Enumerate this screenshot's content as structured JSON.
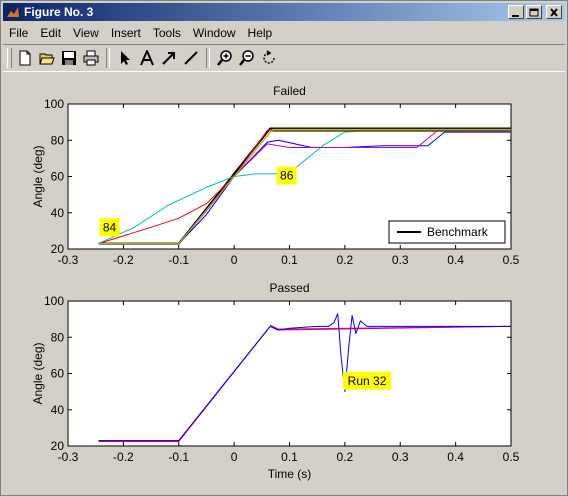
{
  "window": {
    "title": "Figure No. 3"
  },
  "menu": [
    "File",
    "Edit",
    "View",
    "Insert",
    "Tools",
    "Window",
    "Help"
  ],
  "toolbar": [
    "new-file-icon",
    "open-folder-icon",
    "save-icon",
    "print-icon",
    "select-arrow-icon",
    "text-insert-icon",
    "arrow-insert-icon",
    "line-insert-icon",
    "zoom-in-icon",
    "zoom-out-icon",
    "rotate-icon"
  ],
  "chart_data": [
    {
      "type": "line",
      "title": "Failed",
      "ylabel": "Angle (deg)",
      "xlabel": "",
      "xlim": [
        -0.3,
        0.5
      ],
      "ylim": [
        20,
        100
      ],
      "xticks": [
        "-0.3",
        "-0.2",
        "-0.1",
        "0",
        "0.1",
        "0.2",
        "0.3",
        "0.4",
        "0.5"
      ],
      "yticks": [
        "20",
        "40",
        "60",
        "80",
        "100"
      ],
      "legend": {
        "position": "bottom-right",
        "entries": [
          "Benchmark"
        ]
      },
      "annotations": [
        {
          "text": "84",
          "x": -0.225,
          "y": 32
        },
        {
          "text": "86",
          "x": 0.095,
          "y": 60.5
        }
      ],
      "series": [
        {
          "name": "Benchmark",
          "color": "#000000",
          "x": [
            -0.245,
            -0.1,
            0.065,
            0.5
          ],
          "y": [
            23,
            23,
            86.5,
            86.5
          ]
        },
        {
          "color": "#00bfbf",
          "x": [
            -0.245,
            -0.18,
            -0.12,
            -0.05,
            0,
            0.04,
            0.08,
            0.1,
            0.16,
            0.2,
            0.25,
            0.5
          ],
          "y": [
            23,
            32,
            44,
            54,
            60,
            61.5,
            61.5,
            62,
            77,
            84.5,
            85.5,
            85.5
          ]
        },
        {
          "color": "#ff0000",
          "x": [
            -0.245,
            -0.15,
            -0.1,
            -0.05,
            0,
            0.06,
            0.5
          ],
          "y": [
            23,
            32,
            37,
            45,
            60,
            85.5,
            85.5
          ]
        },
        {
          "color": "#0000ff",
          "x": [
            -0.245,
            -0.1,
            -0.05,
            0,
            0.06,
            0.08,
            0.14,
            0.2,
            0.27,
            0.35,
            0.38,
            0.5
          ],
          "y": [
            23,
            23,
            39,
            60,
            79,
            80,
            76,
            76,
            77,
            77,
            84.5,
            84.5
          ]
        },
        {
          "color": "#bf00bf",
          "x": [
            -0.245,
            -0.1,
            -0.05,
            0,
            0.06,
            0.1,
            0.25,
            0.33,
            0.37,
            0.5
          ],
          "y": [
            23,
            23,
            41,
            60,
            78,
            76,
            76,
            76,
            86,
            86
          ]
        },
        {
          "color": "#008000",
          "x": [
            -0.245,
            -0.1,
            0.067,
            0.5
          ],
          "y": [
            23,
            23,
            85,
            85
          ]
        },
        {
          "color": "#bfbf00",
          "x": [
            -0.245,
            -0.1,
            0.07,
            0.5
          ],
          "y": [
            23,
            23,
            86,
            86
          ]
        }
      ]
    },
    {
      "type": "line",
      "title": "Passed",
      "ylabel": "Angle (deg)",
      "xlabel": "Time (s)",
      "xlim": [
        -0.3,
        0.5
      ],
      "ylim": [
        20,
        100
      ],
      "xticks": [
        "-0.3",
        "-0.2",
        "-0.1",
        "0",
        "0.1",
        "0.2",
        "0.3",
        "0.4",
        "0.5"
      ],
      "yticks": [
        "20",
        "40",
        "60",
        "80",
        "100"
      ],
      "annotations": [
        {
          "text": "Run 32",
          "x": 0.24,
          "y": 56
        }
      ],
      "series": [
        {
          "color": "#ff0000",
          "x": [
            -0.245,
            -0.1,
            0.065,
            0.08,
            0.5
          ],
          "y": [
            22.5,
            22.5,
            86,
            84,
            86
          ]
        },
        {
          "color": "#bf00bf",
          "x": [
            -0.245,
            -0.1,
            0.066,
            0.08,
            0.5
          ],
          "y": [
            23,
            23,
            86.5,
            84.5,
            86
          ]
        },
        {
          "color": "#0000ff",
          "x": [
            -0.245,
            -0.1,
            0.065,
            0.08,
            0.1,
            0.15,
            0.17,
            0.18,
            0.187,
            0.193,
            0.2,
            0.207,
            0.213,
            0.22,
            0.228,
            0.24,
            0.5
          ],
          "y": [
            23,
            23,
            86,
            84,
            85,
            86,
            86,
            88,
            93,
            70,
            50,
            75,
            92,
            82,
            89,
            86,
            86
          ]
        }
      ]
    }
  ]
}
